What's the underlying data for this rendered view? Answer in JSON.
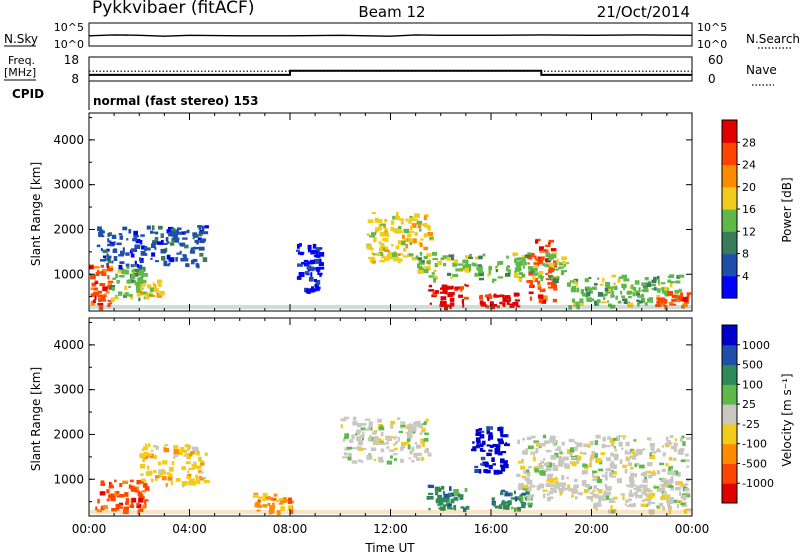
{
  "header": {
    "station": "Pykkvibaer (fitACF)",
    "beam": "Beam 12",
    "date": "21/Oct/2014"
  },
  "chart_data": [
    {
      "type": "line",
      "panel": "noise",
      "left_label": "N.Sky",
      "left_ticks": [
        "10^5",
        "10^0"
      ],
      "right_label": "N.Search",
      "right_ticks": [
        "10^5",
        "10^0"
      ],
      "x": [
        0,
        1,
        2,
        3,
        4,
        6,
        8,
        10,
        12,
        13,
        14,
        16,
        18,
        20,
        22,
        24
      ],
      "sky": [
        2.2,
        2.4,
        2.3,
        2.1,
        2.3,
        2.2,
        2.2,
        2.3,
        2.1,
        2.4,
        2.3,
        2.3,
        2.4,
        2.3,
        2.4,
        2.3
      ]
    },
    {
      "type": "line",
      "panel": "frequency",
      "left_label": "Freq.",
      "left_unit": "[MHz]",
      "left_ticks": [
        "18",
        "8"
      ],
      "right_label": "Nave",
      "right_ticks": [
        "60",
        "0"
      ],
      "freq_segments": [
        {
          "t0": 0.0,
          "t1": 8.0,
          "f": 10.3
        },
        {
          "t0": 8.0,
          "t1": 18.0,
          "f": 12.2
        },
        {
          "t0": 18.0,
          "t1": 24.0,
          "f": 10.3
        }
      ],
      "nave": 24
    },
    {
      "type": "text",
      "panel": "cpid",
      "label": "CPID",
      "value": "normal (fast stereo) 153"
    },
    {
      "type": "heatmap",
      "panel": "power",
      "xlabel": "",
      "ylabel": "Slant Range [km]",
      "yticks": [
        1000,
        2000,
        3000,
        4000
      ],
      "ylim": [
        180,
        4600
      ],
      "xlim": [
        0,
        24
      ],
      "colorbar": {
        "label": "Power [dB]",
        "ticks": [
          "28",
          "24",
          "20",
          "16",
          "12",
          "8",
          "4"
        ],
        "colors": [
          "#0000ff",
          "#1f4fa8",
          "#3a7c5a",
          "#5fb84a",
          "#f2cc1a",
          "#ff8c00",
          "#ff4500",
          "#e00000"
        ]
      },
      "regions": [
        {
          "t0": 0.0,
          "t1": 0.8,
          "r0": 300,
          "r1": 1300,
          "level": 6
        },
        {
          "t0": 0.8,
          "t1": 2.2,
          "r0": 450,
          "r1": 1200,
          "level": 3
        },
        {
          "t0": 0.3,
          "t1": 4.6,
          "r0": 1200,
          "r1": 2100,
          "level": 1
        },
        {
          "t0": 2.0,
          "t1": 2.8,
          "r0": 500,
          "r1": 900,
          "level": 4
        },
        {
          "t0": 8.2,
          "t1": 9.2,
          "r0": 600,
          "r1": 1700,
          "level": 0
        },
        {
          "t0": 11.0,
          "t1": 13.6,
          "r0": 1300,
          "r1": 2400,
          "level": 4
        },
        {
          "t0": 13.5,
          "t1": 15.0,
          "r0": 300,
          "r1": 800,
          "level": 7
        },
        {
          "t0": 15.5,
          "t1": 17.0,
          "r0": 300,
          "r1": 600,
          "level": 7
        },
        {
          "t0": 17.4,
          "t1": 18.5,
          "r0": 400,
          "r1": 1800,
          "level": 6
        },
        {
          "t0": 13.0,
          "t1": 19.0,
          "r0": 900,
          "r1": 1500,
          "level": 3
        },
        {
          "t0": 19.0,
          "t1": 23.5,
          "r0": 300,
          "r1": 1000,
          "level": 3
        },
        {
          "t0": 22.5,
          "t1": 23.8,
          "r0": 300,
          "r1": 650,
          "level": 6
        }
      ]
    },
    {
      "type": "heatmap",
      "panel": "velocity",
      "xlabel": "Time UT",
      "ylabel": "Slant Range [km]",
      "yticks": [
        1000,
        2000,
        3000,
        4000
      ],
      "ylim": [
        180,
        4600
      ],
      "xlim": [
        0,
        24
      ],
      "xticks": [
        "00:00",
        "04:00",
        "08:00",
        "12:00",
        "16:00",
        "20:00",
        "00:00"
      ],
      "colorbar": {
        "label": "Velocity [m s⁻¹]",
        "ticks": [
          "1000",
          "500",
          "100",
          "25",
          "-25",
          "-100",
          "-500",
          "-1000"
        ],
        "colors": [
          "#e00000",
          "#ff4500",
          "#ff8c00",
          "#f2cc1a",
          "#c8c8c0",
          "#5fb84a",
          "#2e8b57",
          "#1f4fa8",
          "#0000cc"
        ]
      },
      "regions": [
        {
          "t0": 0.2,
          "t1": 2.3,
          "r0": 300,
          "r1": 1000,
          "level": 1
        },
        {
          "t0": 2.0,
          "t1": 4.6,
          "r0": 900,
          "r1": 1800,
          "level": 3
        },
        {
          "t0": 6.5,
          "t1": 8.0,
          "r0": 300,
          "r1": 700,
          "level": 2
        },
        {
          "t0": 10.0,
          "t1": 13.5,
          "r0": 1400,
          "r1": 2400,
          "level": 4
        },
        {
          "t0": 13.4,
          "t1": 15.0,
          "r0": 350,
          "r1": 900,
          "level": 6
        },
        {
          "t0": 15.2,
          "t1": 16.6,
          "r0": 1200,
          "r1": 2200,
          "level": 8
        },
        {
          "t0": 16.0,
          "t1": 17.5,
          "r0": 350,
          "r1": 800,
          "level": 6
        },
        {
          "t0": 17.0,
          "t1": 23.8,
          "r0": 600,
          "r1": 2000,
          "level": 4
        },
        {
          "t0": 20.0,
          "t1": 23.8,
          "r0": 300,
          "r1": 900,
          "level": 4
        }
      ]
    }
  ]
}
